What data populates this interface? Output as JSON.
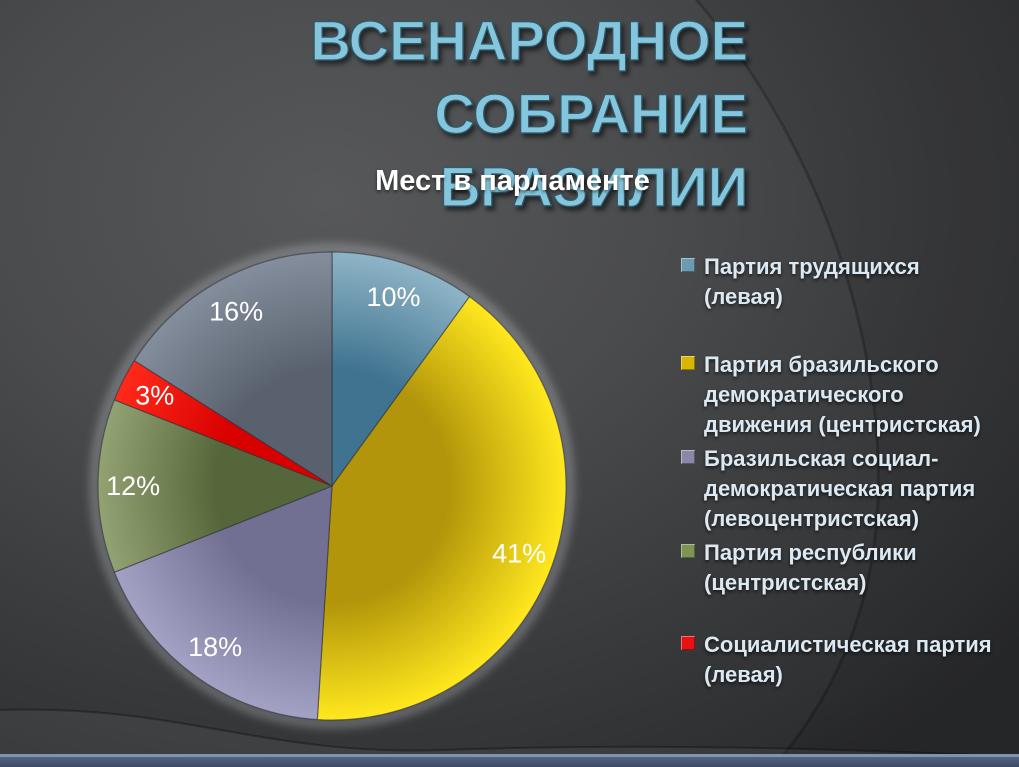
{
  "slide": {
    "title_line1": "ВСЕНАРОДНОЕ СОБРАНИЕ",
    "title_line2": "БРАЗИЛИИ",
    "title_color": "#85c6dc",
    "background_color": "#424346",
    "bottom_bar_colors": [
      "#7e93af",
      "#46536e"
    ]
  },
  "chart_data": {
    "type": "pie",
    "title": "Мест в парламенте",
    "unit": "percent of parliament seats",
    "start_angle_deg": 0,
    "direction": "clockwise",
    "legend_position": "right",
    "grid": false,
    "background": "transparent",
    "label_color": "#ffffff",
    "slices": [
      {
        "label": "Партия трудящихся (левая)",
        "value": 10,
        "pct_label": "10%",
        "color_inner": "#3f7390",
        "color_outer": "#8fb4c6",
        "legend_color": "#6c9ab0",
        "in_legend": true
      },
      {
        "label": "Партия бразильского демократического движения (центристская)",
        "value": 41,
        "pct_label": "41%",
        "color_inner": "#b2950a",
        "color_outer": "#ffe81e",
        "legend_color": "#d9b606",
        "in_legend": true
      },
      {
        "label": "Бразильская социал-демократическая партия (левоцентристская)",
        "value": 18,
        "pct_label": "18%",
        "color_inner": "#716f92",
        "color_outer": "#a3a2c4",
        "legend_color": "#8a87a8",
        "in_legend": true
      },
      {
        "label": "Партия республики (центристская)",
        "value": 12,
        "pct_label": "12%",
        "color_inner": "#55673a",
        "color_outer": "#93a273",
        "legend_color": "#7e9355",
        "in_legend": true
      },
      {
        "label": "Социалистическая партия (левая)",
        "value": 3,
        "pct_label": "3%",
        "color_inner": "#d90000",
        "color_outer": "#ff2a1a",
        "legend_color": "#e81212",
        "in_legend": true
      },
      {
        "label": "",
        "value": 16,
        "pct_label": "16%",
        "color_inner": "#59616e",
        "color_outer": "#848e9c",
        "legend_color": "#6e7582",
        "in_legend": false
      }
    ]
  }
}
